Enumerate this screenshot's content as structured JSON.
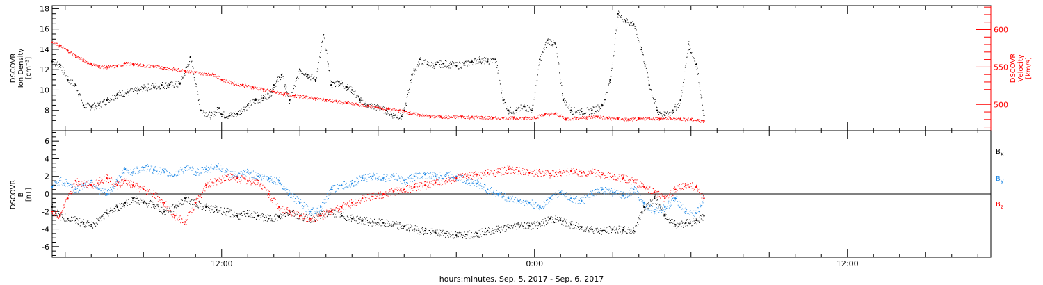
{
  "chart_data": [
    {
      "type": "scatter",
      "panel": "top",
      "xlabel": "hours:minutes, Sep.  5, 2017 - Sep.  6, 2017",
      "ylabel_left": [
        "DSCOVR",
        "Ion Density",
        "[cm⁻³]"
      ],
      "ylabel_right": [
        "DSCOVR",
        "Velocity",
        "[km/s]"
      ],
      "ylim_left": [
        6,
        18.3
      ],
      "yticks_left": [
        8,
        10,
        12,
        14,
        16,
        18
      ],
      "ylim_right": [
        465,
        632
      ],
      "yticks_right": [
        500,
        550,
        600
      ],
      "x_tick_labels": [
        {
          "hour": 12,
          "label": "12:00"
        },
        {
          "hour": 24,
          "label": "0:00"
        },
        {
          "hour": 36,
          "label": "12:00"
        }
      ],
      "xlim_hours": [
        5.5,
        41.5
      ],
      "data_end_hour": 30.5,
      "series": [
        {
          "axis": "left",
          "color": "#000000",
          "x": [
            5.5,
            5.8,
            6.1,
            6.4,
            6.7,
            7.0,
            7.3,
            7.6,
            8.0,
            8.4,
            8.8,
            9.0,
            9.4,
            9.7,
            10.0,
            10.4,
            10.8,
            11.2,
            11.6,
            11.9,
            12.0,
            12.3,
            12.6,
            13.0,
            13.3,
            13.6,
            13.9,
            14.0,
            14.3,
            14.6,
            15.0,
            15.3,
            15.6,
            15.9,
            16.2,
            16.5,
            16.8,
            17.0,
            17.3,
            17.6,
            18.0,
            18.3,
            18.6,
            18.9,
            19.0,
            19.3,
            19.6,
            19.9,
            20.2,
            20.5,
            20.8,
            21.0,
            21.3,
            21.6,
            21.9,
            22.2,
            22.5,
            22.8,
            23.0,
            23.3,
            23.6,
            23.9,
            24.2,
            24.5,
            24.8,
            25.1,
            25.4,
            25.8,
            26.2,
            26.6,
            26.9,
            27.2,
            27.5,
            27.8,
            28.1,
            28.4,
            28.7,
            29.0,
            29.3,
            29.6,
            29.9,
            30.2,
            30.5
          ],
          "values": [
            12.8,
            12.5,
            11.0,
            10.5,
            8.5,
            8.4,
            8.5,
            9.0,
            9.6,
            9.8,
            10.0,
            10.2,
            10.4,
            10.5,
            10.5,
            10.6,
            13.2,
            8.0,
            7.5,
            8.2,
            7.6,
            7.5,
            7.7,
            8.5,
            9.0,
            9.2,
            9.8,
            10.5,
            11.5,
            9.0,
            12.0,
            11.5,
            11.0,
            15.4,
            10.5,
            10.8,
            10.3,
            10.0,
            9.0,
            8.5,
            8.3,
            8.0,
            7.5,
            7.4,
            8.0,
            11.5,
            13.0,
            12.5,
            12.5,
            12.6,
            12.5,
            12.4,
            12.6,
            12.8,
            13.0,
            12.8,
            13.0,
            9.0,
            8.0,
            8.0,
            8.4,
            8.0,
            13.0,
            14.9,
            14.5,
            9.0,
            8.0,
            7.9,
            8.0,
            8.5,
            11.0,
            17.5,
            16.8,
            16.5,
            14.0,
            10.5,
            8.0,
            7.5,
            8.0,
            9.0,
            14.5,
            12.5,
            7.5
          ]
        },
        {
          "axis": "right",
          "color": "#ff0000",
          "x": [
            5.5,
            5.8,
            6.1,
            6.4,
            6.7,
            7.0,
            7.3,
            7.6,
            8.0,
            8.3,
            8.6,
            9.0,
            9.4,
            9.8,
            10.2,
            10.6,
            11.0,
            11.4,
            11.7,
            12.0,
            12.4,
            12.8,
            13.2,
            13.6,
            14.0,
            14.4,
            14.8,
            15.2,
            15.6,
            16.0,
            16.4,
            16.8,
            17.2,
            17.6,
            18.0,
            18.4,
            18.8,
            19.2,
            19.6,
            20.0,
            20.4,
            20.8,
            21.2,
            21.6,
            22.0,
            22.4,
            22.8,
            23.2,
            23.6,
            24.0,
            24.4,
            24.8,
            25.2,
            25.6,
            26.0,
            26.4,
            26.8,
            27.2,
            27.6,
            28.0,
            28.4,
            28.8,
            29.2,
            29.6,
            30.0,
            30.5
          ],
          "values": [
            583,
            578,
            572,
            565,
            559,
            554,
            551,
            550,
            551,
            555,
            554,
            552,
            551,
            549,
            547,
            545,
            543,
            541,
            540,
            533,
            529,
            526,
            523,
            520,
            517,
            514,
            512,
            510,
            508,
            506,
            504,
            502,
            500,
            498,
            496,
            494,
            492,
            489,
            486,
            484,
            484,
            483,
            484,
            483,
            483,
            482,
            482,
            482,
            482,
            483,
            487,
            488,
            481,
            482,
            483,
            484,
            482,
            481,
            480,
            481,
            482,
            481,
            482,
            481,
            480,
            478
          ]
        }
      ]
    },
    {
      "type": "scatter",
      "panel": "bottom",
      "xlabel": "hours:minutes, Sep.  5, 2017 - Sep.  6, 2017",
      "ylabel_left": [
        "DSCOVR",
        "B",
        "[nT]"
      ],
      "ylim": [
        -7.2,
        7.2
      ],
      "yticks": [
        -6,
        -4,
        -2,
        0,
        2,
        4,
        6
      ],
      "zero_line": true,
      "legend": [
        {
          "label": "B",
          "sub": "x",
          "color": "#000000"
        },
        {
          "label": "B",
          "sub": "y",
          "color": "#1e88e5"
        },
        {
          "label": "B",
          "sub": "z",
          "color": "#ff0000"
        }
      ],
      "xlim_hours": [
        5.5,
        41.5
      ],
      "series": [
        {
          "color": "#000000",
          "x": [
            5.5,
            5.8,
            6.1,
            6.4,
            6.7,
            7.0,
            7.3,
            7.6,
            8.0,
            8.3,
            8.6,
            9.0,
            9.4,
            9.8,
            10.2,
            10.6,
            11.0,
            11.4,
            11.8,
            12.2,
            12.6,
            13.0,
            13.4,
            13.8,
            14.2,
            14.6,
            15.0,
            15.4,
            15.8,
            16.2,
            16.6,
            17.0,
            17.4,
            17.8,
            18.2,
            18.6,
            19.0,
            19.4,
            19.8,
            20.2,
            20.6,
            21.0,
            21.4,
            21.8,
            22.2,
            22.6,
            23.0,
            23.4,
            23.8,
            24.2,
            24.6,
            25.0,
            25.4,
            25.8,
            26.2,
            26.6,
            27.0,
            27.4,
            27.8,
            28.2,
            28.6,
            29.0,
            29.4,
            29.8,
            30.2,
            30.5
          ],
          "values": [
            -1.5,
            -2.5,
            -2.8,
            -3.0,
            -3.3,
            -3.5,
            -3.0,
            -2.2,
            -1.5,
            -1.0,
            -0.5,
            -1.0,
            -1.2,
            -2.0,
            -1.5,
            -0.5,
            -1.0,
            -1.5,
            -1.8,
            -2.0,
            -2.5,
            -2.2,
            -2.5,
            -2.8,
            -2.6,
            -2.0,
            -2.5,
            -2.8,
            -2.4,
            -2.0,
            -2.5,
            -2.8,
            -3.0,
            -3.2,
            -3.3,
            -3.5,
            -3.7,
            -4.0,
            -4.2,
            -4.4,
            -4.5,
            -4.7,
            -4.6,
            -4.5,
            -4.2,
            -4.0,
            -3.8,
            -3.5,
            -3.6,
            -3.4,
            -2.8,
            -3.0,
            -3.5,
            -3.8,
            -4.0,
            -4.2,
            -4.0,
            -4.1,
            -4.2,
            -1.5,
            -0.5,
            -2.5,
            -3.5,
            -3.3,
            -3.0,
            -2.5
          ]
        },
        {
          "color": "#1e88e5",
          "x": [
            5.5,
            5.8,
            6.1,
            6.4,
            6.7,
            7.0,
            7.3,
            7.6,
            8.0,
            8.3,
            8.6,
            9.0,
            9.4,
            9.8,
            10.2,
            10.6,
            11.0,
            11.4,
            11.8,
            12.2,
            12.6,
            13.0,
            13.4,
            13.8,
            14.2,
            14.6,
            15.0,
            15.4,
            15.8,
            16.2,
            16.6,
            17.0,
            17.4,
            17.8,
            18.2,
            18.6,
            19.0,
            19.4,
            19.8,
            20.2,
            20.6,
            21.0,
            21.4,
            21.8,
            22.2,
            22.6,
            23.0,
            23.4,
            23.8,
            24.2,
            24.6,
            25.0,
            25.4,
            25.8,
            26.2,
            26.6,
            27.0,
            27.4,
            27.8,
            28.2,
            28.6,
            29.0,
            29.4,
            29.8,
            30.2,
            30.5
          ],
          "values": [
            0.8,
            1.5,
            1.2,
            0.5,
            1.0,
            1.5,
            0.5,
            0.0,
            1.5,
            2.8,
            2.5,
            3.0,
            2.8,
            2.5,
            2.2,
            3.0,
            2.5,
            2.8,
            3.2,
            2.5,
            2.0,
            2.5,
            2.0,
            1.8,
            1.5,
            0.0,
            -1.0,
            -2.0,
            -1.5,
            0.5,
            1.0,
            1.2,
            1.8,
            2.0,
            1.8,
            2.0,
            1.5,
            2.0,
            2.2,
            2.0,
            2.2,
            2.0,
            1.5,
            1.2,
            0.5,
            0.0,
            -0.5,
            -0.8,
            -1.0,
            -1.5,
            -0.5,
            0.2,
            -0.5,
            -0.8,
            0.0,
            0.5,
            0.2,
            -0.2,
            0.5,
            -1.0,
            -2.0,
            -1.5,
            -0.5,
            -2.0,
            -2.2,
            -0.5
          ]
        },
        {
          "color": "#ff0000",
          "x": [
            5.5,
            5.8,
            6.1,
            6.4,
            6.7,
            7.0,
            7.3,
            7.6,
            8.0,
            8.3,
            8.6,
            9.0,
            9.4,
            9.8,
            10.2,
            10.6,
            11.0,
            11.4,
            11.8,
            12.2,
            12.6,
            13.0,
            13.4,
            13.8,
            14.2,
            14.6,
            15.0,
            15.4,
            15.8,
            16.2,
            16.6,
            17.0,
            17.4,
            17.8,
            18.2,
            18.6,
            19.0,
            19.4,
            19.8,
            20.2,
            20.6,
            21.0,
            21.4,
            21.8,
            22.2,
            22.6,
            23.0,
            23.4,
            23.8,
            24.2,
            24.6,
            25.0,
            25.4,
            25.8,
            26.2,
            26.6,
            27.0,
            27.4,
            27.8,
            28.2,
            28.6,
            29.0,
            29.4,
            29.8,
            30.2,
            30.5
          ],
          "values": [
            -2.0,
            -2.5,
            -0.5,
            1.5,
            1.2,
            1.0,
            1.5,
            1.8,
            1.0,
            1.5,
            1.0,
            0.5,
            0.0,
            -1.0,
            -2.5,
            -3.2,
            -1.0,
            1.0,
            1.5,
            2.0,
            1.8,
            1.5,
            1.5,
            0.0,
            -1.5,
            -2.0,
            -2.5,
            -2.8,
            -2.5,
            -2.0,
            -1.5,
            -1.0,
            -0.5,
            -0.3,
            0.0,
            0.3,
            0.5,
            0.8,
            1.0,
            1.3,
            1.5,
            1.8,
            2.0,
            2.2,
            2.4,
            2.5,
            2.8,
            2.6,
            2.4,
            2.5,
            2.3,
            2.5,
            2.6,
            2.4,
            2.5,
            2.2,
            2.0,
            1.8,
            1.5,
            0.8,
            0.2,
            -0.5,
            0.5,
            1.0,
            0.8,
            -0.5
          ]
        }
      ]
    }
  ]
}
